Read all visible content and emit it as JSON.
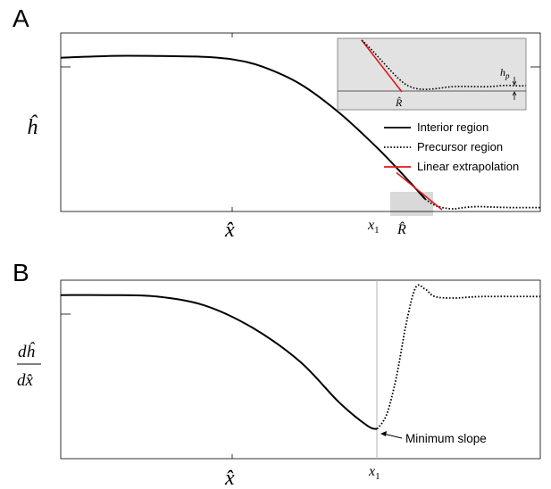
{
  "chart_data": [
    {
      "panel": "A",
      "type": "line",
      "ylabel": "ĥ",
      "xlabel": "x̂",
      "tick_labels": {
        "x1": "x",
        "x1_sub": "1",
        "R": "R̂"
      },
      "series": [
        {
          "name": "Interior region",
          "style": "solid",
          "color": "#000000",
          "x": [
            0.0,
            0.1,
            0.2,
            0.3,
            0.36,
            0.42,
            0.5,
            0.58,
            0.66,
            0.72,
            0.76
          ],
          "y": [
            0.86,
            0.87,
            0.87,
            0.865,
            0.85,
            0.81,
            0.71,
            0.55,
            0.35,
            0.18,
            0.06
          ]
        },
        {
          "name": "Precursor region",
          "style": "dotted",
          "color": "#000000",
          "x": [
            0.76,
            0.78,
            0.8,
            0.82,
            0.84,
            0.87,
            0.9,
            0.94,
            1.0
          ],
          "y": [
            0.06,
            0.025,
            0.01,
            0.005,
            0.012,
            0.018,
            0.015,
            0.012,
            0.012
          ]
        },
        {
          "name": "Linear extrapolation",
          "style": "solid",
          "color": "#e0161b",
          "x": [
            0.7,
            0.795
          ],
          "y": [
            0.21,
            0.0
          ]
        }
      ],
      "inset": {
        "label_R": "R̂",
        "label_hp": "h",
        "label_hp_sub": "p"
      },
      "legend": "right"
    },
    {
      "panel": "B",
      "type": "line",
      "ylabel_num": "dĥ",
      "ylabel_den": "dx̂",
      "xlabel": "x̂",
      "tick_labels": {
        "x1": "x",
        "x1_sub": "1"
      },
      "annotation": "Minimum slope",
      "series": [
        {
          "style": "solid",
          "color": "#000000",
          "x": [
            0.0,
            0.1,
            0.2,
            0.3,
            0.4,
            0.5,
            0.58,
            0.64,
            0.66
          ],
          "y": [
            0.0,
            0.0,
            -0.01,
            -0.07,
            -0.22,
            -0.45,
            -0.72,
            -0.88,
            -0.9
          ]
        },
        {
          "style": "dotted",
          "color": "#000000",
          "x": [
            0.66,
            0.68,
            0.7,
            0.72,
            0.74,
            0.76,
            0.78,
            0.82,
            0.88,
            1.0
          ],
          "y": [
            -0.9,
            -0.8,
            -0.55,
            -0.2,
            0.05,
            0.04,
            -0.01,
            -0.02,
            -0.01,
            -0.01
          ]
        }
      ]
    }
  ],
  "legend_entries": [
    "Interior region",
    "Precursor region",
    "Linear extrapolation"
  ],
  "panel_labels": [
    "A",
    "B"
  ]
}
